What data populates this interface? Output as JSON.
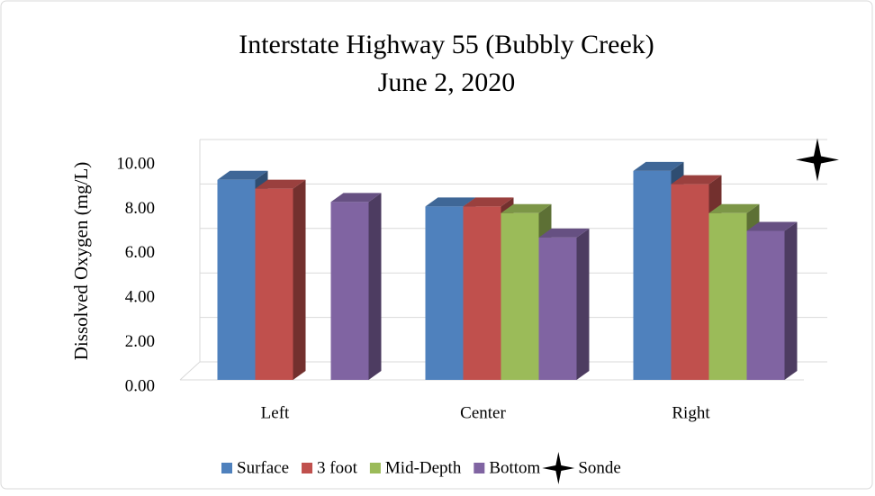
{
  "chart_data": {
    "type": "bar3d",
    "title": "Interstate Highway  55 (Bubbly Creek)",
    "subtitle": "June 2, 2020",
    "y_label": "Dissolved Oxygen (mg/L)",
    "categories": [
      "Left",
      "Center",
      "Right"
    ],
    "series": [
      {
        "name": "Surface",
        "color": "#4f81bd",
        "values": [
          9.0,
          7.8,
          9.4
        ]
      },
      {
        "name": "3 foot",
        "color": "#c0504d",
        "values": [
          8.6,
          7.8,
          8.8
        ]
      },
      {
        "name": "Mid-Depth",
        "color": "#9bbb59",
        "values": [
          null,
          7.5,
          7.5
        ]
      },
      {
        "name": "Bottom",
        "color": "#8064a2",
        "values": [
          8.0,
          6.4,
          6.7
        ]
      },
      {
        "name": "Sonde",
        "color": "#000000",
        "marker": "star",
        "values": [
          null,
          null,
          9.9
        ]
      }
    ],
    "ylim": [
      0,
      10
    ],
    "yticks": [
      {
        "value": 0,
        "label": "0.00"
      },
      {
        "value": 2,
        "label": "2.00"
      },
      {
        "value": 4,
        "label": "4.00"
      },
      {
        "value": 6,
        "label": "6.00"
      },
      {
        "value": 8,
        "label": "8.00"
      },
      {
        "value": 10,
        "label": "10.00"
      }
    ],
    "grid": true,
    "legend": "bottom"
  }
}
